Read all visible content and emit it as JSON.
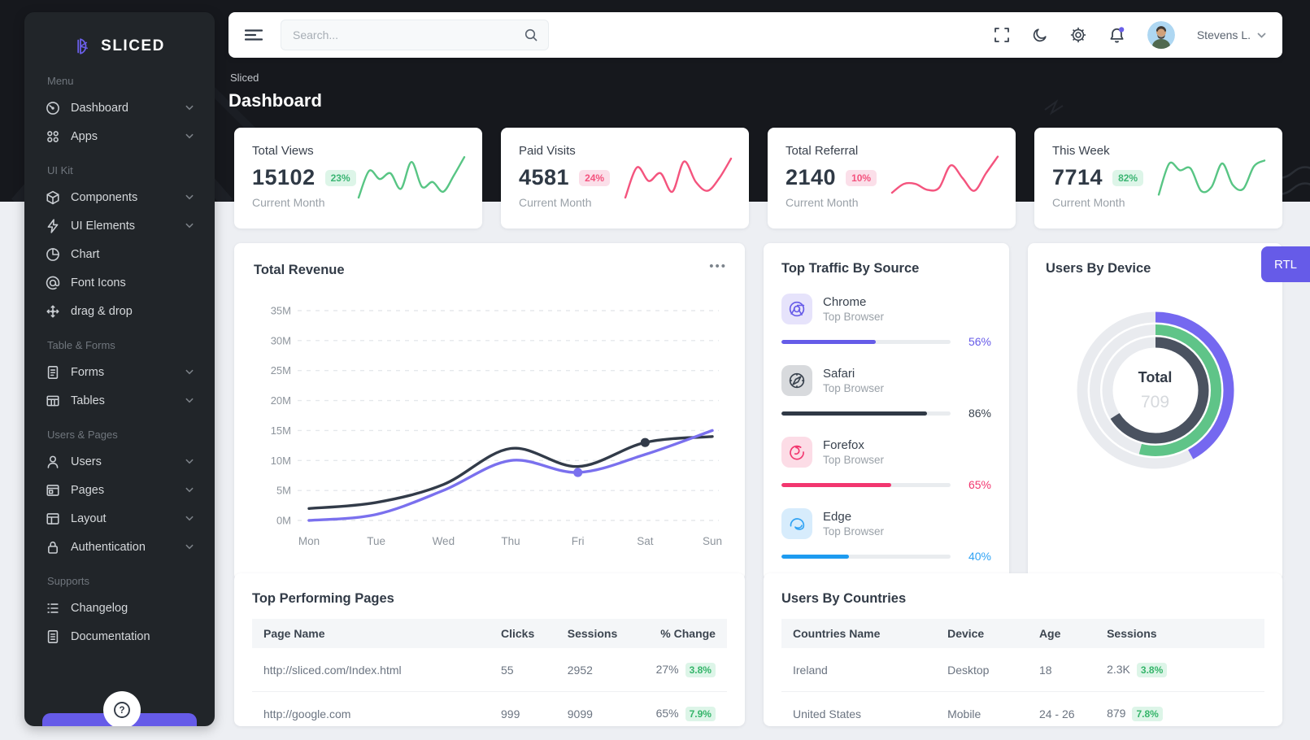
{
  "theme": {
    "accent": "#665be8",
    "accent_light": "#e6e3fb",
    "green": "#58c584",
    "green_text": "#3bb573",
    "green_bg": "#ddf5e8",
    "pink": "#f4537e",
    "pink_strong": "#f2366f",
    "pink_bg": "#fbdfe9",
    "blue": "#1d9bf0",
    "blue_bg": "#d7ecfc",
    "dark": "#2f3945",
    "gray": "#9aa1a8",
    "line_dark": "#323b49",
    "line_purple": "#7a70ee",
    "donut_dark": "#4a5260",
    "header_bg": "#16181d",
    "sidebar_bg": "#212529",
    "body_bg": "#edeff3"
  },
  "brand": {
    "name": "SLICED"
  },
  "topbar": {
    "search_placeholder": "Search...",
    "user_name": "Stevens L.",
    "icons": [
      "menu-icon",
      "search-icon",
      "fullscreen-icon",
      "moon-icon",
      "gear-icon",
      "bell-icon",
      "avatar",
      "chevron-down-icon"
    ]
  },
  "page": {
    "breadcrumb": "Sliced",
    "title": "Dashboard"
  },
  "rtl_label": "RTL",
  "sidebar": {
    "sections": [
      {
        "label": "Menu",
        "items": [
          {
            "label": "Dashboard",
            "icon": "dashboard",
            "chevron": true
          },
          {
            "label": "Apps",
            "icon": "apps",
            "chevron": true
          }
        ]
      },
      {
        "label": "UI Kit",
        "items": [
          {
            "label": "Components",
            "icon": "components",
            "chevron": true
          },
          {
            "label": "UI Elements",
            "icon": "ui-elements",
            "chevron": true
          },
          {
            "label": "Chart",
            "icon": "chart",
            "chevron": false
          },
          {
            "label": "Font Icons",
            "icon": "font-icons",
            "chevron": false
          },
          {
            "label": "drag & drop",
            "icon": "drag-drop",
            "chevron": false
          }
        ]
      },
      {
        "label": "Table & Forms",
        "items": [
          {
            "label": "Forms",
            "icon": "forms",
            "chevron": true
          },
          {
            "label": "Tables",
            "icon": "tables",
            "chevron": true
          }
        ]
      },
      {
        "label": "Users & Pages",
        "items": [
          {
            "label": "Users",
            "icon": "users",
            "chevron": true
          },
          {
            "label": "Pages",
            "icon": "pages",
            "chevron": true
          },
          {
            "label": "Layout",
            "icon": "layout",
            "chevron": true
          },
          {
            "label": "Authentication",
            "icon": "auth",
            "chevron": true
          }
        ]
      },
      {
        "label": "Supports",
        "items": [
          {
            "label": "Changelog",
            "icon": "changelog",
            "chevron": false
          },
          {
            "label": "Documentation",
            "icon": "docs",
            "chevron": false
          }
        ]
      }
    ]
  },
  "stats": [
    {
      "label": "Total Views",
      "value": "15102",
      "badge": "23%",
      "tone": "green",
      "note": "Current Month"
    },
    {
      "label": "Paid Visits",
      "value": "4581",
      "badge": "24%",
      "tone": "pink",
      "note": "Current Month"
    },
    {
      "label": "Total Referral",
      "value": "2140",
      "badge": "10%",
      "tone": "pink",
      "note": "Current Month"
    },
    {
      "label": "This Week",
      "value": "7714",
      "badge": "82%",
      "tone": "green",
      "note": "Current Month"
    }
  ],
  "traffic": {
    "title": "Top Traffic By Source",
    "items": [
      {
        "name": "Chrome",
        "sub": "Top Browser",
        "pct": 56,
        "color": "#655ce8",
        "pct_color": "#665be8",
        "box_bg": "#e6e3fb",
        "icon": "chrome"
      },
      {
        "name": "Safari",
        "sub": "Top Browser",
        "pct": 86,
        "color": "#2f3845",
        "pct_color": "#39424e",
        "box_bg": "#d8dadd",
        "icon": "safari"
      },
      {
        "name": "Forefox",
        "sub": "Top Browser",
        "pct": 65,
        "color": "#f2366f",
        "pct_color": "#f2366f",
        "box_bg": "#fcdce6",
        "icon": "forefox"
      },
      {
        "name": "Edge",
        "sub": "Top Browser",
        "pct": 40,
        "color": "#1d9bf0",
        "pct_color": "#30a3f4",
        "box_bg": "#d7ecfc",
        "icon": "edge"
      }
    ]
  },
  "device": {
    "title": "Users By Device",
    "center_label": "Total",
    "total": "709"
  },
  "pages_table": {
    "title": "Top Performing Pages",
    "headers": [
      "Page Name",
      "Clicks",
      "Sessions",
      "% Change"
    ],
    "rows": [
      {
        "page": "http://sliced.com/Index.html",
        "clicks": "55",
        "sessions": "2952",
        "change": "27%",
        "badge": "3.8%"
      },
      {
        "page": "http://google.com",
        "clicks": "999",
        "sessions": "9099",
        "change": "65%",
        "badge": "7.9%"
      }
    ]
  },
  "countries_table": {
    "title": "Users By Countries",
    "headers": [
      "Countries Name",
      "Device",
      "Age",
      "Sessions"
    ],
    "rows": [
      {
        "country": "Ireland",
        "device": "Desktop",
        "age": "18",
        "sessions": "2.3K",
        "badge": "3.8%"
      },
      {
        "country": "United States",
        "device": "Mobile",
        "age": "24 - 26",
        "sessions": "879",
        "badge": "7.8%"
      }
    ]
  },
  "chart_data": [
    {
      "type": "line",
      "title": "Total Revenue",
      "x": [
        "Mon",
        "Tue",
        "Wed",
        "Thu",
        "Fri",
        "Sat",
        "Sun"
      ],
      "series": [
        {
          "name": "dark",
          "color": "#323b49",
          "values": [
            2,
            3,
            6,
            12,
            9,
            13,
            14
          ]
        },
        {
          "name": "purple",
          "color": "#7a70ee",
          "values": [
            0,
            1,
            5,
            10,
            8,
            11,
            15
          ]
        }
      ],
      "ylim": [
        0,
        35
      ],
      "yticks": [
        "0M",
        "5M",
        "10M",
        "15M",
        "20M",
        "25M",
        "30M",
        "35M"
      ],
      "unit": "M",
      "grid": true,
      "markers": [
        {
          "series": 1,
          "index": 4
        },
        {
          "series": 0,
          "index": 5
        }
      ]
    },
    {
      "type": "bar",
      "title": "Top Traffic By Source",
      "categories": [
        "Chrome",
        "Safari",
        "Forefox",
        "Edge"
      ],
      "values": [
        56,
        86,
        65,
        40
      ],
      "colors": [
        "#655ce8",
        "#2f3845",
        "#f2366f",
        "#1d9bf0"
      ]
    },
    {
      "type": "pie",
      "title": "Users By Device",
      "center_label": "Total",
      "center_value": "709",
      "rings": [
        {
          "color": "#7568f0",
          "pct": 42
        },
        {
          "color": "#5fc488",
          "pct": 54
        },
        {
          "color": "#4a5260",
          "pct": 66
        }
      ]
    },
    {
      "type": "line",
      "title": "stat-card sparklines",
      "ylim": [
        0,
        10
      ],
      "series": [
        {
          "name": "Total Views",
          "color": "#58c584",
          "values": [
            1,
            6.5,
            4.8,
            6,
            2.8,
            8.3,
            3.2,
            4.2,
            2.2,
            5.5,
            9.3
          ]
        },
        {
          "name": "Paid Visits",
          "color": "#f4547e",
          "values": [
            1,
            7.2,
            4.4,
            6,
            2.2,
            8.4,
            4.2,
            2.4,
            5,
            9
          ]
        },
        {
          "name": "Total Referral",
          "color": "#f4547e",
          "values": [
            2,
            3.8,
            3.8,
            2.6,
            3,
            7.6,
            5,
            2.4,
            6,
            9.4
          ]
        },
        {
          "name": "This Week",
          "color": "#58c584",
          "values": [
            1.6,
            8,
            6.6,
            7,
            2.4,
            3.2,
            8,
            3.6,
            2.8,
            7.4,
            8.6
          ]
        }
      ]
    }
  ]
}
